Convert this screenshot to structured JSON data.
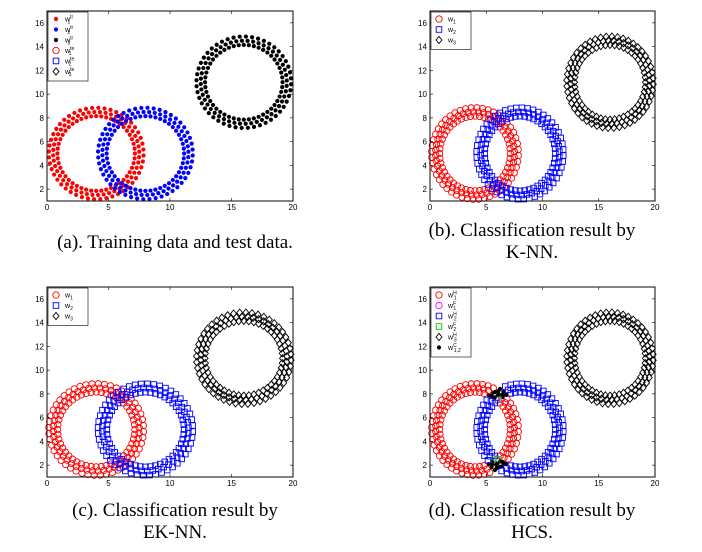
{
  "figure": {
    "captions": [
      {
        "id": "a",
        "lines": [
          "(a). Training data and test data."
        ]
      },
      {
        "id": "b",
        "lines": [
          "(b). Classification result by",
          "K-NN."
        ]
      },
      {
        "id": "c",
        "lines": [
          "(c). Classification result by",
          "EK-NN."
        ]
      },
      {
        "id": "d",
        "lines": [
          "(d). Classification result by",
          "HCS."
        ]
      }
    ]
  },
  "colors": {
    "red": "#ff0000",
    "blue": "#0000ff",
    "black": "#000000",
    "magenta": "#ff00ff",
    "green": "#00cc00"
  },
  "chart_data": [
    {
      "id": "a",
      "type": "scatter",
      "xlim": [
        0,
        20
      ],
      "ylim": [
        1,
        17
      ],
      "xticks": [
        0,
        5,
        10,
        15,
        20
      ],
      "yticks": [
        2,
        4,
        6,
        8,
        10,
        12,
        14,
        16
      ],
      "title": "",
      "xlabel": "",
      "ylabel": "",
      "grid": false,
      "legend_position": "top-left",
      "rings": [
        {
          "cx": 4,
          "cy": 5,
          "r_inner": 3,
          "r_outer": 4,
          "color": "#ff0000",
          "marker": "dot"
        },
        {
          "cx": 8,
          "cy": 5,
          "r_inner": 3,
          "r_outer": 4,
          "color": "#0000ff",
          "marker": "dot"
        },
        {
          "cx": 16,
          "cy": 11,
          "r_inner": 3,
          "r_outer": 4,
          "color": "#000000",
          "marker": "dot"
        }
      ],
      "series": [
        {
          "name": "w",
          "sub": "1",
          "sup": "tr",
          "color": "#ff0000",
          "marker": "dot"
        },
        {
          "name": "w",
          "sub": "2",
          "sup": "tr",
          "color": "#0000ff",
          "marker": "dot"
        },
        {
          "name": "w",
          "sub": "3",
          "sup": "tr",
          "color": "#000000",
          "marker": "dot"
        },
        {
          "name": "w",
          "sub": "1",
          "sup": "te",
          "color": "#ff0000",
          "marker": "circle"
        },
        {
          "name": "w",
          "sub": "2",
          "sup": "te",
          "color": "#0000ff",
          "marker": "square"
        },
        {
          "name": "w",
          "sub": "3",
          "sup": "te",
          "color": "#000000",
          "marker": "diamond"
        }
      ]
    },
    {
      "id": "b",
      "type": "scatter",
      "xlim": [
        0,
        20
      ],
      "ylim": [
        1,
        17
      ],
      "xticks": [
        0,
        5,
        10,
        15,
        20
      ],
      "yticks": [
        2,
        4,
        6,
        8,
        10,
        12,
        14,
        16
      ],
      "title": "",
      "xlabel": "",
      "ylabel": "",
      "grid": false,
      "legend_position": "top-left",
      "rings": [
        {
          "cx": 4,
          "cy": 5,
          "r_inner": 3,
          "r_outer": 4,
          "color": "#ff0000",
          "marker": "circle"
        },
        {
          "cx": 8,
          "cy": 5,
          "r_inner": 3,
          "r_outer": 4,
          "color": "#0000ff",
          "marker": "square"
        },
        {
          "cx": 16,
          "cy": 11,
          "r_inner": 3,
          "r_outer": 4,
          "color": "#000000",
          "marker": "diamond"
        }
      ],
      "series": [
        {
          "name": "w",
          "sub": "1",
          "sup": "",
          "color": "#ff0000",
          "marker": "circle"
        },
        {
          "name": "w",
          "sub": "2",
          "sup": "",
          "color": "#0000ff",
          "marker": "square"
        },
        {
          "name": "w",
          "sub": "3",
          "sup": "",
          "color": "#000000",
          "marker": "diamond"
        }
      ]
    },
    {
      "id": "c",
      "type": "scatter",
      "xlim": [
        0,
        20
      ],
      "ylim": [
        1,
        17
      ],
      "xticks": [
        0,
        5,
        10,
        15,
        20
      ],
      "yticks": [
        2,
        4,
        6,
        8,
        10,
        12,
        14,
        16
      ],
      "title": "",
      "xlabel": "",
      "ylabel": "",
      "grid": false,
      "legend_position": "top-left",
      "rings": [
        {
          "cx": 4,
          "cy": 5,
          "r_inner": 3,
          "r_outer": 4,
          "color": "#ff0000",
          "marker": "circle"
        },
        {
          "cx": 8,
          "cy": 5,
          "r_inner": 3,
          "r_outer": 4,
          "color": "#0000ff",
          "marker": "square"
        },
        {
          "cx": 16,
          "cy": 11,
          "r_inner": 3,
          "r_outer": 4,
          "color": "#000000",
          "marker": "diamond"
        }
      ],
      "series": [
        {
          "name": "w",
          "sub": "1",
          "sup": "",
          "color": "#ff0000",
          "marker": "circle"
        },
        {
          "name": "w",
          "sub": "2",
          "sup": "",
          "color": "#0000ff",
          "marker": "square"
        },
        {
          "name": "w",
          "sub": "3",
          "sup": "",
          "color": "#000000",
          "marker": "diamond"
        }
      ]
    },
    {
      "id": "d",
      "type": "scatter",
      "xlim": [
        0,
        20
      ],
      "ylim": [
        1,
        17
      ],
      "xticks": [
        0,
        5,
        10,
        15,
        20
      ],
      "yticks": [
        2,
        4,
        6,
        8,
        10,
        12,
        14,
        16
      ],
      "title": "",
      "xlabel": "",
      "ylabel": "",
      "grid": false,
      "legend_position": "top-left",
      "rings": [
        {
          "cx": 4,
          "cy": 5,
          "r_inner": 3,
          "r_outer": 4,
          "color": "#ff0000",
          "marker": "circle"
        },
        {
          "cx": 8,
          "cy": 5,
          "r_inner": 3,
          "r_outer": 4,
          "color": "#0000ff",
          "marker": "square"
        },
        {
          "cx": 16,
          "cy": 11,
          "r_inner": 3,
          "r_outer": 4,
          "color": "#000000",
          "marker": "diamond"
        }
      ],
      "overlap_classes": {
        "ring_red_fuzzy": {
          "color": "#ff00ff",
          "marker": "circle"
        },
        "ring_blue_fuzzy": {
          "color": "#00cc00",
          "marker": "square"
        },
        "crossing": {
          "color": "#000000",
          "marker": "dot"
        }
      },
      "series": [
        {
          "name": "w",
          "sub": "1",
          "sup": "H",
          "color": "#ff0000",
          "marker": "circle"
        },
        {
          "name": "w",
          "sub": "1",
          "sup": "F",
          "color": "#ff00ff",
          "marker": "circle"
        },
        {
          "name": "w",
          "sub": "2",
          "sup": "H",
          "color": "#0000ff",
          "marker": "square"
        },
        {
          "name": "w",
          "sub": "2",
          "sup": "F",
          "color": "#00cc00",
          "marker": "square"
        },
        {
          "name": "w",
          "sub": "3",
          "sup": "H",
          "color": "#000000",
          "marker": "diamond"
        },
        {
          "name": "w",
          "sub": "1,2",
          "sup": "C",
          "color": "#000000",
          "marker": "dot"
        }
      ]
    }
  ]
}
